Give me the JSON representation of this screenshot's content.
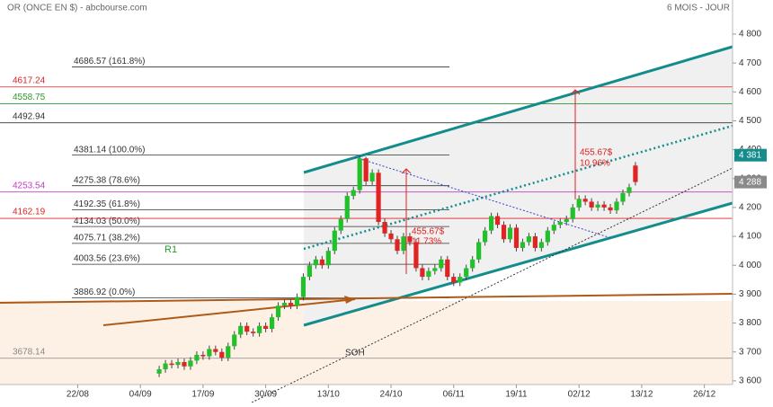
{
  "header": {
    "title": "OR (ONCE EN $) - abcbourse.com",
    "period": "6 MOIS - JOUR"
  },
  "chart_data": {
    "type": "candlestick",
    "xlim": [
      -2.4,
      114.5
    ],
    "ylim": [
      3525,
      4918
    ],
    "xticks": [
      {
        "value": 10,
        "label": "22/08"
      },
      {
        "value": 20,
        "label": "04/09"
      },
      {
        "value": 30,
        "label": "17/09"
      },
      {
        "value": 40,
        "label": "30/09"
      },
      {
        "value": 50,
        "label": "13/10"
      },
      {
        "value": 60,
        "label": "24/10"
      },
      {
        "value": 70,
        "label": "06/11"
      },
      {
        "value": 80,
        "label": "19/11"
      },
      {
        "value": 90,
        "label": "02/12"
      },
      {
        "value": 100,
        "label": "13/12"
      },
      {
        "value": 110,
        "label": "26/12"
      }
    ],
    "yticks": [
      {
        "value": 3600,
        "label": "3 600"
      },
      {
        "value": 3700,
        "label": "3 700"
      },
      {
        "value": 3800,
        "label": "3 800"
      },
      {
        "value": 3900,
        "label": "3 900"
      },
      {
        "value": 4000,
        "label": "4 000"
      },
      {
        "value": 4100,
        "label": "4 100"
      },
      {
        "value": 4200,
        "label": "4 200"
      },
      {
        "value": 4300,
        "label": "4 300"
      },
      {
        "value": 4400,
        "label": "4 400"
      },
      {
        "value": 4500,
        "label": "4 500"
      },
      {
        "value": 4600,
        "label": "4 600"
      },
      {
        "value": 4700,
        "label": "4 700"
      },
      {
        "value": 4800,
        "label": "4 800"
      }
    ],
    "up_color": "#22c02a",
    "down_color": "#e02424",
    "x": [
      23,
      24,
      25,
      26,
      27,
      28,
      29,
      30,
      31,
      32,
      33,
      34,
      35,
      36,
      37,
      38,
      39,
      40,
      41,
      42,
      43,
      44,
      45,
      46,
      47,
      48,
      49,
      50,
      51,
      52,
      53,
      54,
      55,
      56,
      57,
      58,
      59,
      60,
      61,
      62,
      63,
      64,
      65,
      66,
      67,
      68,
      69,
      70,
      71,
      72,
      73,
      74,
      75,
      76,
      77,
      78,
      79,
      80,
      81,
      82,
      83,
      84,
      85,
      86,
      87,
      88,
      89,
      90,
      91,
      92,
      93,
      94,
      95,
      96,
      97,
      98,
      99
    ],
    "open": [
      3625,
      3640,
      3660,
      3655,
      3665,
      3650,
      3670,
      3690,
      3685,
      3710,
      3700,
      3680,
      3720,
      3760,
      3790,
      3770,
      3765,
      3790,
      3780,
      3820,
      3860,
      3870,
      3860,
      3890,
      3960,
      4000,
      4020,
      4000,
      4050,
      4120,
      4160,
      4240,
      4260,
      4370,
      4290,
      4320,
      4150,
      4110,
      4090,
      4050,
      4100,
      4080,
      3990,
      3960,
      3980,
      3990,
      4020,
      3960,
      3940,
      3960,
      3990,
      4020,
      4080,
      4120,
      4170,
      4140,
      4090,
      4130,
      4060,
      4080,
      4100,
      4060,
      4080,
      4120,
      4140,
      4150,
      4160,
      4200,
      4230,
      4220,
      4200,
      4210,
      4200,
      4190,
      4220,
      4250,
      4345
    ],
    "high": [
      3652,
      3672,
      3672,
      3677,
      3677,
      3682,
      3702,
      3702,
      3722,
      3722,
      3712,
      3732,
      3772,
      3802,
      3802,
      3782,
      3802,
      3802,
      3832,
      3872,
      3882,
      3882,
      3902,
      3972,
      4012,
      4032,
      4032,
      4062,
      4132,
      4172,
      4252,
      4272,
      4381,
      4375,
      4332,
      4332,
      4162,
      4122,
      4102,
      4112,
      4112,
      4092,
      4002,
      3992,
      4002,
      4032,
      4032,
      3972,
      3972,
      4002,
      4032,
      4092,
      4132,
      4182,
      4182,
      4152,
      4142,
      4142,
      4092,
      4112,
      4112,
      4092,
      4132,
      4152,
      4162,
      4172,
      4212,
      4242,
      4242,
      4232,
      4222,
      4222,
      4212,
      4232,
      4262,
      4282,
      4357
    ],
    "low": [
      3613,
      3628,
      3643,
      3643,
      3638,
      3638,
      3658,
      3673,
      3673,
      3688,
      3668,
      3668,
      3708,
      3748,
      3758,
      3753,
      3753,
      3768,
      3768,
      3808,
      3848,
      3848,
      3848,
      3878,
      3948,
      3988,
      3988,
      3988,
      4038,
      4108,
      4148,
      4228,
      4248,
      4278,
      4278,
      4138,
      4098,
      4078,
      4038,
      4038,
      4068,
      3978,
      3948,
      3948,
      3968,
      3978,
      3948,
      3928,
      3928,
      3948,
      3978,
      4008,
      4068,
      4108,
      4128,
      4078,
      4078,
      4048,
      4048,
      4068,
      4048,
      4048,
      4068,
      4108,
      4128,
      4138,
      4148,
      4188,
      4208,
      4188,
      4188,
      4188,
      4178,
      4178,
      4208,
      4238,
      4276
    ],
    "close": [
      3640,
      3660,
      3655,
      3665,
      3650,
      3670,
      3690,
      3685,
      3710,
      3700,
      3680,
      3720,
      3760,
      3790,
      3770,
      3765,
      3790,
      3780,
      3820,
      3860,
      3870,
      3860,
      3890,
      3960,
      4000,
      4020,
      4000,
      4050,
      4120,
      4160,
      4240,
      4260,
      4370,
      4290,
      4320,
      4150,
      4110,
      4090,
      4050,
      4100,
      4080,
      3990,
      3960,
      3980,
      3990,
      4020,
      3960,
      3940,
      3960,
      3990,
      4020,
      4080,
      4120,
      4170,
      4140,
      4090,
      4130,
      4060,
      4080,
      4100,
      4060,
      4080,
      4120,
      4140,
      4150,
      4160,
      4200,
      4230,
      4220,
      4200,
      4210,
      4200,
      4190,
      4220,
      4250,
      4270,
      4288
    ],
    "fibonacci": [
      {
        "value": 4686.57,
        "label": "4686.57  (161.8%)",
        "color": "#333333"
      },
      {
        "value": 4381.14,
        "label": "4381.14  (100.0%)",
        "color": "#333333"
      },
      {
        "value": 4275.38,
        "label": "4275.38  (78.6%)",
        "color": "#333333"
      },
      {
        "value": 4192.35,
        "label": "4192.35  (61.8%)",
        "color": "#333333"
      },
      {
        "value": 4134.03,
        "label": "4134.03  (50.0%)",
        "color": "#333333"
      },
      {
        "value": 4075.71,
        "label": "4075.71  (38.2%)",
        "color": "#333333"
      },
      {
        "value": 4003.56,
        "label": "4003.56  (23.6%)",
        "color": "#333333"
      },
      {
        "value": 3886.92,
        "label": "3886.92  (0.0%)",
        "color": "#333333"
      }
    ],
    "levels": [
      {
        "value": 4617.24,
        "label": "4617.24",
        "color": "#e02020"
      },
      {
        "value": 4558.75,
        "label": "4558.75",
        "color": "#2a9a2a"
      },
      {
        "value": 4492.94,
        "label": "4492.94",
        "color": "#333333"
      },
      {
        "value": 4253.54,
        "label": "4253.54",
        "color": "#c040c0"
      },
      {
        "value": 4162.19,
        "label": "4162.19",
        "color": "#e02020"
      },
      {
        "value": 3678.14,
        "label": "3678.14",
        "color": "#888888"
      }
    ],
    "price_tags": [
      {
        "value": 4381,
        "label": "4 381",
        "color": "#138c8c"
      },
      {
        "value": 4288,
        "label": "4 288",
        "color": "#8a8a8a"
      }
    ],
    "annotations": {
      "r1": "R1",
      "soh": "SOH",
      "move1": "455.67$",
      "pct1": "11.73%",
      "move2": "455.67$",
      "pct2": "10.96%"
    }
  }
}
